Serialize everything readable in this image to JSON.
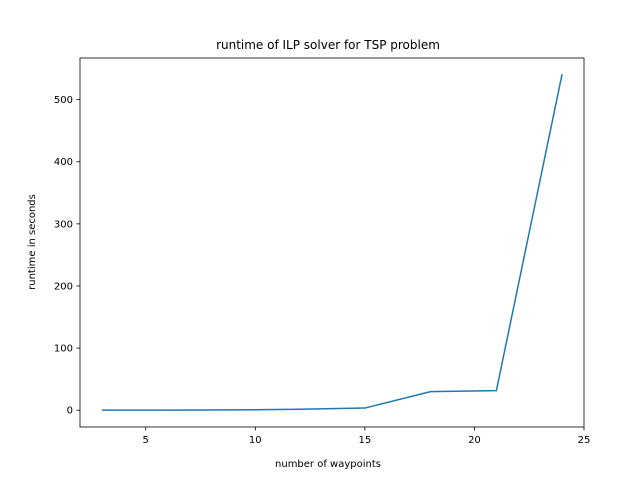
{
  "chart_data": {
    "type": "line",
    "title": "runtime of ILP solver for TSP problem",
    "xlabel": "number of waypoints",
    "ylabel": "runtime in seconds",
    "xlim": [
      2.0,
      25.0
    ],
    "ylim": [
      -27.0,
      567.0
    ],
    "xticks": [
      5,
      10,
      15,
      20,
      25
    ],
    "yticks": [
      0,
      100,
      200,
      300,
      400,
      500
    ],
    "grid": false,
    "series": [
      {
        "color": "#1f77b4",
        "x": [
          3,
          6,
          9,
          12,
          15,
          18,
          21,
          24
        ],
        "y": [
          0.1,
          0.2,
          0.5,
          1.5,
          3.5,
          30,
          31.5,
          541
        ]
      }
    ]
  }
}
